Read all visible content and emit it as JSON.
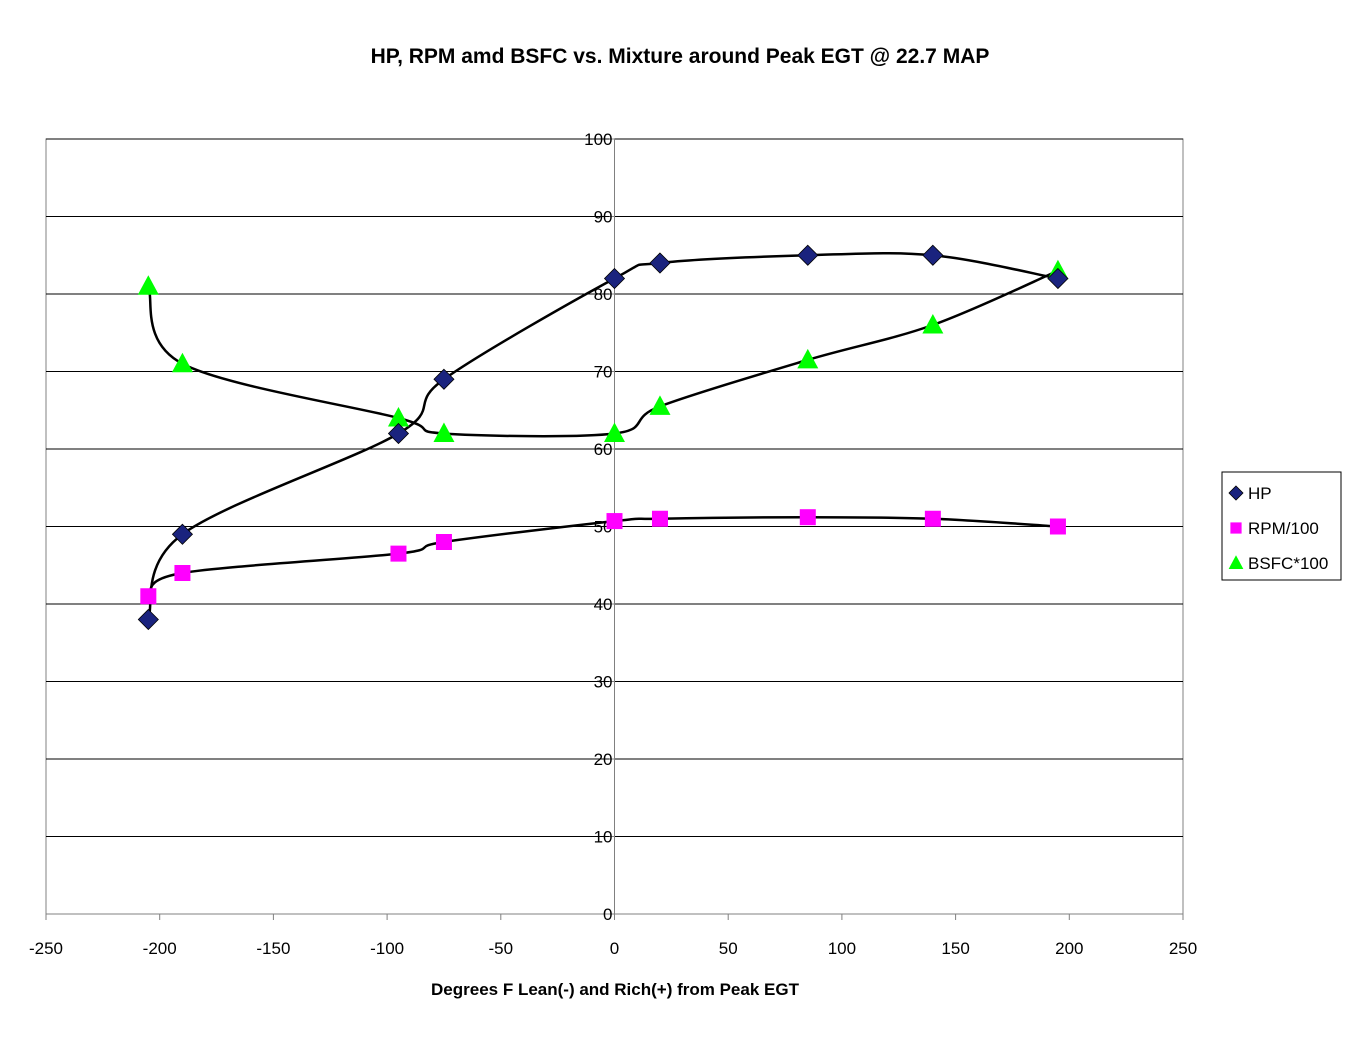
{
  "chart_data": {
    "type": "scatter",
    "title": "HP, RPM amd BSFC vs. Mixture around Peak EGT @ 22.7 MAP",
    "xlabel": "Degrees F Lean(-) and Rich(+) from Peak EGT",
    "ylabel": "",
    "xlim": [
      -250,
      250
    ],
    "ylim": [
      0,
      100
    ],
    "x_ticks": [
      -250,
      -200,
      -150,
      -100,
      -50,
      0,
      50,
      100,
      150,
      200,
      250
    ],
    "y_ticks": [
      0,
      10,
      20,
      30,
      40,
      50,
      60,
      70,
      80,
      90,
      100
    ],
    "x_tick_labels": [
      "-250",
      "-200",
      "-150",
      "-100",
      "-50",
      "0",
      "50",
      "100",
      "150",
      "200",
      "250"
    ],
    "y_tick_labels": [
      "0",
      "10",
      "20",
      "30",
      "40",
      "50",
      "60",
      "70",
      "80",
      "90",
      "100"
    ],
    "grid": {
      "horizontal": true,
      "vertical": false
    },
    "legend_position": "right",
    "series": [
      {
        "name": "HP",
        "marker": "diamond",
        "color": "#1a237e",
        "x": [
          -205,
          -190,
          -95,
          -75,
          0,
          20,
          85,
          140,
          195
        ],
        "y": [
          38,
          49,
          62,
          69,
          82,
          84,
          85,
          85,
          82
        ]
      },
      {
        "name": "RPM/100",
        "marker": "square",
        "color": "#ff00ff",
        "x": [
          -205,
          -190,
          -95,
          -75,
          0,
          20,
          85,
          140,
          195
        ],
        "y": [
          41,
          44,
          46.5,
          48,
          50.7,
          51,
          51.2,
          51,
          50
        ]
      },
      {
        "name": "BSFC*100",
        "marker": "triangle",
        "color": "#00ff00",
        "x": [
          -205,
          -190,
          -95,
          -75,
          0,
          20,
          85,
          140,
          195
        ],
        "y": [
          81,
          71,
          64,
          62,
          62,
          65.5,
          71.5,
          76,
          83
        ]
      }
    ],
    "trend_line_color": "#000000"
  }
}
